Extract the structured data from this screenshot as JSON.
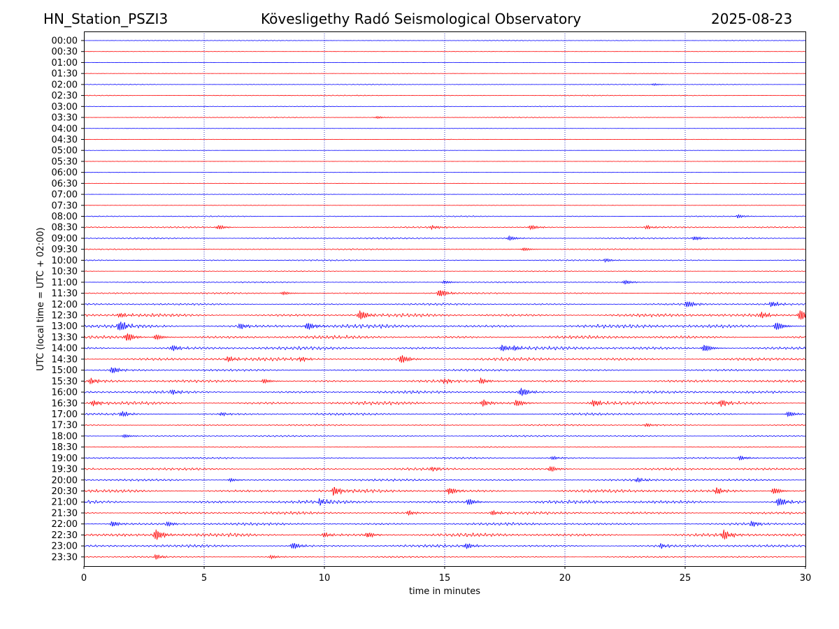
{
  "header": {
    "station": "HN_Station_PSZI3",
    "title": "Kövesligethy Radó Seismological Observatory",
    "date": "2025-08-23"
  },
  "chart_data": {
    "type": "line",
    "chart_kind": "helicorder",
    "xlabel": "time in minutes",
    "ylabel": "UTC (local time = UTC + 02:00)",
    "xlim": [
      0,
      30
    ],
    "xticks": [
      "0",
      "5",
      "10",
      "15",
      "20",
      "25",
      "30"
    ],
    "vertical_gridlines_at": [
      5,
      10,
      15,
      20,
      25
    ],
    "grid": "dotted vertical",
    "colors": {
      "even_rows": "#0000ff",
      "odd_rows": "#ff0000",
      "grid": "#0000aa",
      "axes": "#000000"
    },
    "rows": [
      {
        "label": "00:00",
        "activity": 0.06,
        "bursts": []
      },
      {
        "label": "00:30",
        "activity": 0.03,
        "bursts": []
      },
      {
        "label": "01:00",
        "activity": 0.03,
        "bursts": []
      },
      {
        "label": "01:30",
        "activity": 0.03,
        "bursts": []
      },
      {
        "label": "02:00",
        "activity": 0.07,
        "bursts": [
          [
            23.7,
            0.2
          ]
        ]
      },
      {
        "label": "02:30",
        "activity": 0.08,
        "bursts": []
      },
      {
        "label": "03:00",
        "activity": 0.06,
        "bursts": []
      },
      {
        "label": "03:30",
        "activity": 0.08,
        "bursts": [
          [
            12.2,
            0.2
          ]
        ]
      },
      {
        "label": "04:00",
        "activity": 0.03,
        "bursts": []
      },
      {
        "label": "04:30",
        "activity": 0.04,
        "bursts": []
      },
      {
        "label": "05:00",
        "activity": 0.03,
        "bursts": []
      },
      {
        "label": "05:30",
        "activity": 0.03,
        "bursts": []
      },
      {
        "label": "06:00",
        "activity": 0.03,
        "bursts": []
      },
      {
        "label": "06:30",
        "activity": 0.03,
        "bursts": []
      },
      {
        "label": "07:00",
        "activity": 0.06,
        "bursts": []
      },
      {
        "label": "07:30",
        "activity": 0.04,
        "bursts": []
      },
      {
        "label": "08:00",
        "activity": 0.1,
        "bursts": [
          [
            27.2,
            0.3
          ]
        ]
      },
      {
        "label": "08:30",
        "activity": 0.14,
        "bursts": [
          [
            5.6,
            0.4
          ],
          [
            14.5,
            0.3
          ],
          [
            18.6,
            0.4
          ],
          [
            23.4,
            0.3
          ]
        ]
      },
      {
        "label": "09:00",
        "activity": 0.14,
        "bursts": [
          [
            17.7,
            0.4
          ],
          [
            25.4,
            0.4
          ]
        ]
      },
      {
        "label": "09:30",
        "activity": 0.12,
        "bursts": [
          [
            18.3,
            0.3
          ]
        ]
      },
      {
        "label": "10:00",
        "activity": 0.12,
        "bursts": [
          [
            21.7,
            0.3
          ]
        ]
      },
      {
        "label": "10:30",
        "activity": 0.08,
        "bursts": []
      },
      {
        "label": "11:00",
        "activity": 0.12,
        "bursts": [
          [
            22.5,
            0.4
          ],
          [
            15.0,
            0.3
          ]
        ]
      },
      {
        "label": "11:30",
        "activity": 0.15,
        "bursts": [
          [
            14.8,
            0.7
          ],
          [
            8.3,
            0.3
          ]
        ]
      },
      {
        "label": "12:00",
        "activity": 0.18,
        "bursts": [
          [
            25.1,
            0.6
          ],
          [
            28.6,
            0.5
          ]
        ]
      },
      {
        "label": "12:30",
        "activity": 0.3,
        "bursts": [
          [
            11.5,
            0.9
          ],
          [
            29.8,
            1.0
          ],
          [
            1.5,
            0.4
          ],
          [
            28.2,
            0.5
          ]
        ]
      },
      {
        "label": "13:00",
        "activity": 0.35,
        "bursts": [
          [
            1.5,
            1.0
          ],
          [
            9.3,
            0.7
          ],
          [
            28.8,
            0.8
          ],
          [
            6.5,
            0.5
          ]
        ]
      },
      {
        "label": "13:30",
        "activity": 0.3,
        "bursts": [
          [
            1.8,
            0.8
          ],
          [
            3.0,
            0.5
          ]
        ]
      },
      {
        "label": "14:00",
        "activity": 0.3,
        "bursts": [
          [
            17.4,
            0.6
          ],
          [
            25.8,
            0.7
          ],
          [
            3.7,
            0.5
          ],
          [
            17.9,
            0.5
          ]
        ]
      },
      {
        "label": "14:30",
        "activity": 0.3,
        "bursts": [
          [
            13.2,
            0.8
          ],
          [
            6.0,
            0.5
          ],
          [
            9.0,
            0.4
          ]
        ]
      },
      {
        "label": "15:00",
        "activity": 0.2,
        "bursts": [
          [
            1.2,
            0.6
          ]
        ]
      },
      {
        "label": "15:30",
        "activity": 0.25,
        "bursts": [
          [
            0.3,
            0.5
          ],
          [
            16.5,
            0.5
          ],
          [
            7.5,
            0.4
          ],
          [
            15.0,
            0.4
          ]
        ]
      },
      {
        "label": "16:00",
        "activity": 0.25,
        "bursts": [
          [
            18.2,
            0.8
          ],
          [
            3.7,
            0.4
          ]
        ]
      },
      {
        "label": "16:30",
        "activity": 0.3,
        "bursts": [
          [
            0.4,
            0.5
          ],
          [
            16.6,
            0.6
          ],
          [
            18.0,
            0.6
          ],
          [
            21.2,
            0.6
          ],
          [
            26.5,
            0.6
          ]
        ]
      },
      {
        "label": "17:00",
        "activity": 0.22,
        "bursts": [
          [
            1.6,
            0.5
          ],
          [
            29.3,
            0.5
          ],
          [
            5.7,
            0.3
          ]
        ]
      },
      {
        "label": "17:30",
        "activity": 0.14,
        "bursts": [
          [
            23.4,
            0.3
          ]
        ]
      },
      {
        "label": "18:00",
        "activity": 0.14,
        "bursts": [
          [
            1.7,
            0.3
          ]
        ]
      },
      {
        "label": "18:30",
        "activity": 0.1,
        "bursts": []
      },
      {
        "label": "19:00",
        "activity": 0.15,
        "bursts": [
          [
            27.3,
            0.4
          ],
          [
            19.5,
            0.3
          ]
        ]
      },
      {
        "label": "19:30",
        "activity": 0.22,
        "bursts": [
          [
            19.4,
            0.5
          ],
          [
            14.5,
            0.4
          ]
        ]
      },
      {
        "label": "20:00",
        "activity": 0.2,
        "bursts": [
          [
            23.0,
            0.4
          ],
          [
            6.1,
            0.3
          ]
        ]
      },
      {
        "label": "20:30",
        "activity": 0.3,
        "bursts": [
          [
            10.4,
            0.8
          ],
          [
            15.2,
            0.7
          ],
          [
            26.3,
            0.6
          ],
          [
            28.7,
            0.6
          ]
        ]
      },
      {
        "label": "21:00",
        "activity": 0.32,
        "bursts": [
          [
            28.9,
            0.8
          ],
          [
            16.0,
            0.6
          ],
          [
            9.8,
            0.5
          ]
        ]
      },
      {
        "label": "21:30",
        "activity": 0.25,
        "bursts": [
          [
            13.5,
            0.4
          ],
          [
            17.0,
            0.4
          ]
        ]
      },
      {
        "label": "22:00",
        "activity": 0.25,
        "bursts": [
          [
            1.2,
            0.5
          ],
          [
            27.8,
            0.5
          ],
          [
            3.5,
            0.4
          ]
        ]
      },
      {
        "label": "22:30",
        "activity": 0.32,
        "bursts": [
          [
            3.0,
            1.0
          ],
          [
            26.6,
            0.9
          ],
          [
            11.8,
            0.5
          ],
          [
            10.0,
            0.4
          ]
        ]
      },
      {
        "label": "23:00",
        "activity": 0.25,
        "bursts": [
          [
            8.7,
            0.6
          ],
          [
            15.9,
            0.5
          ],
          [
            24.0,
            0.4
          ]
        ]
      },
      {
        "label": "23:30",
        "activity": 0.14,
        "bursts": [
          [
            3.0,
            0.4
          ],
          [
            7.8,
            0.3
          ]
        ]
      }
    ]
  }
}
